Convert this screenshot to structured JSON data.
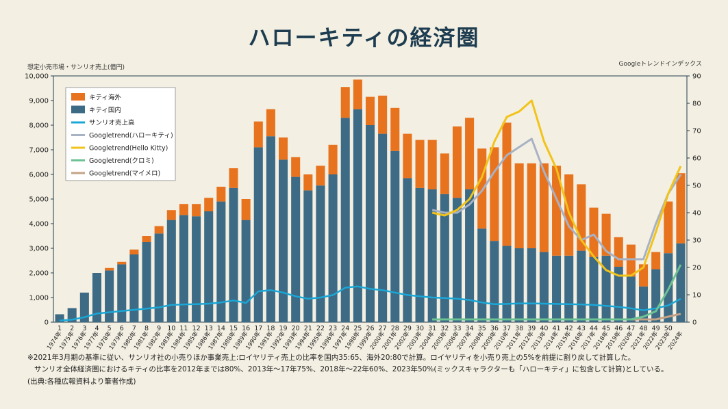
{
  "title": "ハローキティの経済圏",
  "left_axis_label": "想定小売市場・サンリオ売上(億円)",
  "right_axis_label": "Googleトレンドインデックス",
  "notes": [
    "※2021年3月期の基準に従い、サンリオ社の小売りほか事業売上:ロイヤリティ売上の比率を国内35:65、海外20:80で計算。ロイヤリティを小売り売上の5%を前提に割り戻して計算した。",
    "サンリオ全体経済圏におけるキティの比率を2012年までは80%、2013年～17年75%、2018年～22年60%、2023年50%(ミックスキャラクターも「ハローキティ」に包含して計算)としている。",
    "(出典:各種広報資料より筆者作成)"
  ],
  "chart_data": {
    "type": "bar",
    "stacked": true,
    "x_numbers": [
      "1",
      "2",
      "3",
      "4",
      "5",
      "6",
      "7",
      "8",
      "9",
      "10",
      "11",
      "12",
      "13",
      "14",
      "15",
      "16",
      "17",
      "18",
      "19",
      "20",
      "21",
      "22",
      "23",
      "24",
      "25",
      "26",
      "27",
      "28",
      "29",
      "30",
      "31",
      "32",
      "33",
      "34",
      "35",
      "36",
      "37",
      "38",
      "39",
      "40",
      "41",
      "42",
      "43",
      "44",
      "45",
      "46",
      "47",
      "48",
      "49",
      "50"
    ],
    "x_years": [
      "1974年",
      "1975年",
      "1976年",
      "1977年",
      "1978年",
      "1979年",
      "1980年",
      "1981年",
      "1982年",
      "1983年",
      "1984年",
      "1985年",
      "1986年",
      "1987年",
      "1988年",
      "1989年",
      "1990年",
      "1991年",
      "1992年",
      "1993年",
      "1994年",
      "1995年",
      "1996年",
      "1997年",
      "1998年",
      "1999年",
      "2000年",
      "2001年",
      "2002年",
      "2003年",
      "2004年",
      "2005年",
      "2006年",
      "2007年",
      "2008年",
      "2009年",
      "2010年",
      "2011年",
      "2012年",
      "2013年",
      "2014年",
      "2015年",
      "2016年",
      "2017年",
      "2018年",
      "2019年",
      "2020年",
      "2021年",
      "2022年",
      "2023年",
      "2024年"
    ],
    "yleft_ticks": [
      "0",
      "1,000",
      "2,000",
      "3,000",
      "4,000",
      "5,000",
      "6,000",
      "7,000",
      "8,000",
      "9,000",
      "10,000"
    ],
    "yright_ticks": [
      "0",
      "10",
      "20",
      "30",
      "40",
      "50",
      "60",
      "70",
      "80",
      "90"
    ],
    "ylim_left": [
      0,
      10000
    ],
    "ylim_right": [
      0,
      90
    ],
    "legend_position": "top-left",
    "colors": {
      "overseas": "#e8731f",
      "domestic": "#3d6a85",
      "sanrio": "#1aa7d6",
      "trend_hello": "#a8b2c5",
      "trend_kitty": "#f2c318",
      "trend_kuromi": "#6cc293",
      "trend_mymelo": "#c4a385"
    },
    "series": [
      {
        "name": "キティ海外",
        "key": "overseas",
        "values": [
          0,
          0,
          0,
          0,
          100,
          100,
          200,
          250,
          300,
          400,
          450,
          500,
          550,
          600,
          800,
          850,
          1050,
          1100,
          900,
          800,
          650,
          800,
          1200,
          1250,
          1200,
          1150,
          1550,
          1750,
          1800,
          1950,
          2000,
          1650,
          2900,
          2900,
          3250,
          3800,
          5000,
          3450,
          3450,
          3600,
          3650,
          3300,
          2700,
          2000,
          1700,
          1200,
          1300,
          900,
          700,
          2100,
          2850
        ]
      },
      {
        "name": "キティ国内",
        "key": "domestic",
        "values": [
          320,
          570,
          1200,
          2000,
          2100,
          2350,
          2750,
          3250,
          3600,
          4150,
          4350,
          4300,
          4500,
          4900,
          5450,
          4150,
          7100,
          7550,
          6600,
          5900,
          5350,
          5550,
          6000,
          8300,
          8650,
          8000,
          7650,
          6950,
          5850,
          5450,
          5400,
          5200,
          5050,
          5400,
          3800,
          3300,
          3100,
          3000,
          3000,
          2850,
          2700,
          2700,
          2900,
          2650,
          2700,
          2250,
          1850,
          1450,
          2150,
          2800,
          3200
        ]
      },
      {
        "name": "サンリオ売上高",
        "key": "sanrio",
        "values": [
          60,
          100,
          200,
          350,
          400,
          450,
          500,
          550,
          600,
          700,
          720,
          730,
          750,
          800,
          880,
          780,
          1250,
          1300,
          1200,
          1050,
          950,
          1000,
          1100,
          1400,
          1450,
          1350,
          1300,
          1200,
          1100,
          1050,
          1000,
          980,
          950,
          900,
          800,
          730,
          740,
          760,
          760,
          750,
          740,
          730,
          720,
          700,
          660,
          620,
          560,
          480,
          560,
          680,
          950
        ]
      },
      {
        "name": "Googletrend(ハローキティ)",
        "key": "trend_hello",
        "x_start_index": 30,
        "values": [
          41,
          40,
          40,
          43,
          48,
          55,
          61,
          64,
          67,
          55,
          45,
          35,
          30,
          32,
          26,
          23,
          23,
          23,
          36,
          47,
          54
        ]
      },
      {
        "name": "Googletrend(Hello Kitty)",
        "key": "trend_kitty",
        "x_start_index": 30,
        "values": [
          40,
          39,
          41,
          45,
          53,
          66,
          75,
          77,
          81,
          66,
          56,
          40,
          30,
          24,
          19,
          17,
          17,
          20,
          33,
          47,
          57
        ]
      },
      {
        "name": "Googletrend(クロミ)",
        "key": "trend_kuromi",
        "x_start_index": 30,
        "values": [
          1,
          1,
          1,
          1,
          1,
          1,
          1,
          1,
          1,
          1,
          1,
          1,
          1,
          1,
          1,
          1,
          1,
          2,
          4,
          12,
          21
        ]
      },
      {
        "name": "Googletrend(マイメロ)",
        "key": "trend_mymelo",
        "x_start_index": 30,
        "values": [
          1,
          1,
          1,
          1,
          1,
          1,
          1,
          1,
          1,
          1,
          1,
          1,
          1,
          1,
          1,
          1,
          1,
          1,
          1,
          2,
          3
        ]
      }
    ]
  }
}
